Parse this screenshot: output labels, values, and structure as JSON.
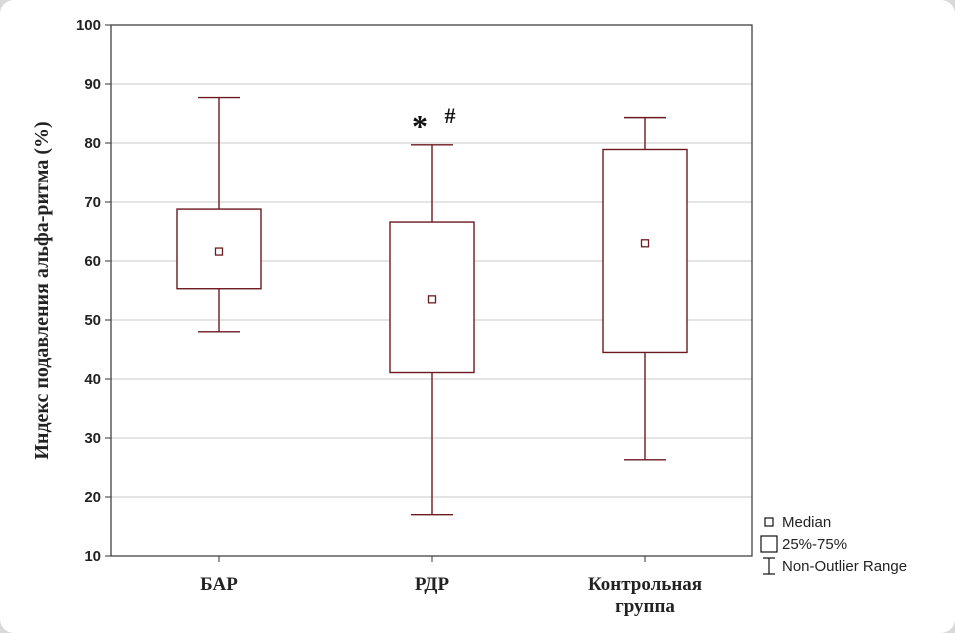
{
  "chart_data": {
    "type": "boxplot",
    "ylabel": "Индекс подавления альфа-ритма (%)",
    "xlabel": "",
    "ylim": [
      10,
      100
    ],
    "yticks": [
      10,
      20,
      30,
      40,
      50,
      60,
      70,
      80,
      90,
      100
    ],
    "grid": true,
    "categories": [
      {
        "lines": [
          "БАР"
        ]
      },
      {
        "lines": [
          "РДР"
        ]
      },
      {
        "lines": [
          "Контрольная",
          "группа"
        ]
      }
    ],
    "boxes": [
      {
        "min": 48,
        "q1": 55.3,
        "median": 61.6,
        "q3": 68.8,
        "max": 87.7
      },
      {
        "min": 17,
        "q1": 41.1,
        "median": 53.5,
        "q3": 66.6,
        "max": 79.7
      },
      {
        "min": 26.3,
        "q1": 44.5,
        "median": 63,
        "q3": 78.9,
        "max": 84.3
      }
    ],
    "annotations": [
      {
        "category_index": 1,
        "symbols": [
          "*",
          "#"
        ]
      }
    ],
    "legend": {
      "position": "bottom-right",
      "items": [
        {
          "symbol": "median-square",
          "label": "Median"
        },
        {
          "symbol": "box",
          "label": "25%-75%"
        },
        {
          "symbol": "whisker",
          "label": "Non-Outlier Range"
        }
      ]
    },
    "colors": {
      "box": "#6b1a1f",
      "grid": "#c8c8c8",
      "axis": "#333333"
    }
  }
}
